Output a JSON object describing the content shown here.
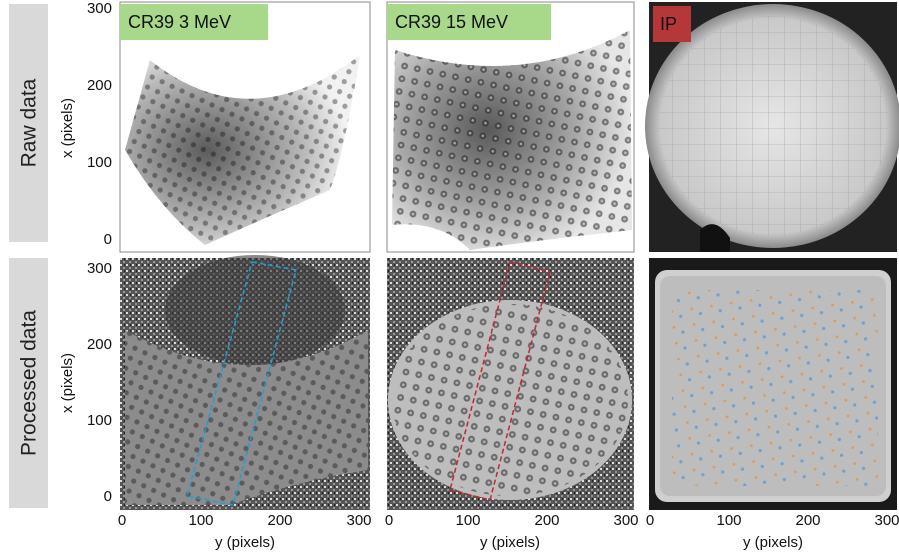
{
  "row_labels": [
    "Raw data",
    "Processed data"
  ],
  "panel_labels": [
    "CR39 3 MeV",
    "CR39 15 MeV",
    "IP"
  ],
  "x_axis_label": "y (pixels)",
  "y_axis_label": "x (pixels)",
  "x_ticks": [
    0,
    100,
    200,
    300
  ],
  "y_ticks": [
    0,
    100,
    200,
    300
  ]
}
